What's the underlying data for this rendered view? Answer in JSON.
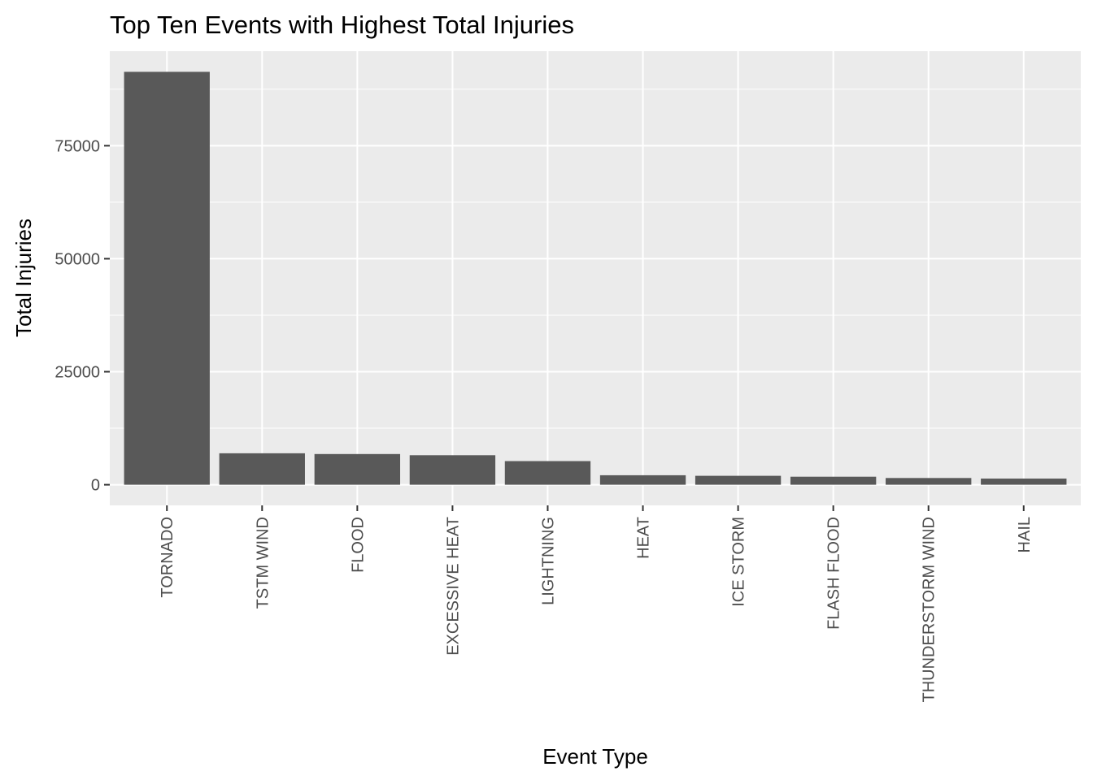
{
  "chart_data": {
    "type": "bar",
    "title": "Top Ten Events with Highest Total Injuries",
    "xlabel": "Event Type",
    "ylabel": "Total Injuries",
    "categories": [
      "TORNADO",
      "TSTM WIND",
      "FLOOD",
      "EXCESSIVE HEAT",
      "LIGHTNING",
      "HEAT",
      "ICE STORM",
      "FLASH FLOOD",
      "THUNDERSTORM WIND",
      "HAIL"
    ],
    "values": [
      91346,
      6957,
      6789,
      6525,
      5230,
      2100,
      1975,
      1777,
      1488,
      1361
    ],
    "ylim": [
      -4567,
      95913
    ],
    "yticks": [
      0,
      25000,
      50000,
      75000
    ],
    "ytick_labels": [
      "0",
      "25000",
      "50000",
      "75000"
    ],
    "grid": true,
    "legend": "none",
    "colors": {
      "bar": "#595959",
      "panel": "#ebebeb",
      "grid": "#ffffff"
    }
  }
}
